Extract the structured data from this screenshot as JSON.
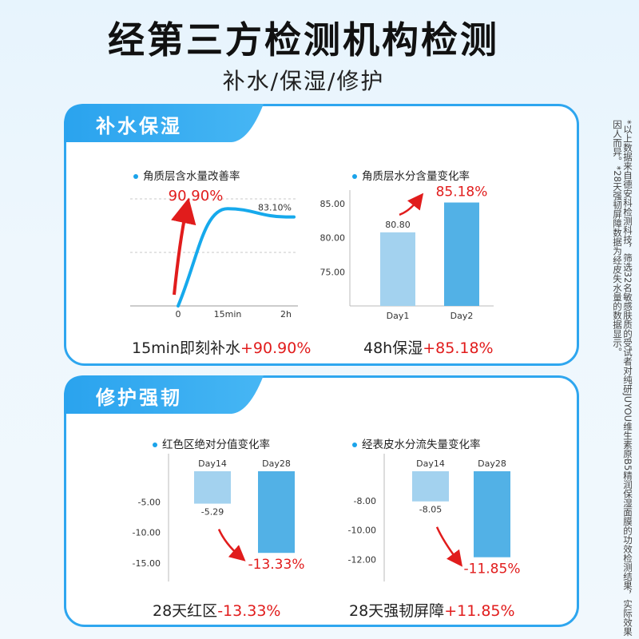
{
  "header": {
    "title": "经第三方检测机构检测",
    "subtitle": "补水/保湿/修护"
  },
  "side_note": "*以上数据来自德安科检测科技，筛选32名敏感肤质的受试者对纯研JUYOU维生素原B5精润保湿面膜的功效检测结果，实际效果因人而异。*28天强韧屏障数据为经皮失水量的数据显示。",
  "colors": {
    "accent": "#2ea6ef",
    "bar_light": "#a3d2ef",
    "bar_dark": "#52b1e6",
    "highlight": "#e11c1c"
  },
  "sections": {
    "hydration": {
      "tab_label": "补水保湿",
      "charts": [
        {
          "title": "角质层含水量改善率",
          "summary_text": "15min即刻补水",
          "summary_value": "+90.90%"
        },
        {
          "title": "角质层水分含量变化率",
          "summary_text": "48h保湿",
          "summary_value": "+85.18%"
        }
      ]
    },
    "repair": {
      "tab_label": "修护强韧",
      "charts": [
        {
          "title": "红色区绝对分值变化率",
          "summary_text": "28天红区",
          "summary_value": "-13.33%"
        },
        {
          "title": "经表皮水分流失量变化率",
          "summary_text": "28天强韧屏障",
          "summary_value": "+11.85%"
        }
      ]
    }
  },
  "chart_data": [
    {
      "type": "line",
      "title": "角质层含水量改善率",
      "x": [
        "0",
        "15min",
        "2h"
      ],
      "series": [
        {
          "values": [
            0,
            90.9,
            83.1
          ]
        }
      ],
      "data_labels": [
        "90.90%",
        "83.10%"
      ],
      "grid": true
    },
    {
      "type": "bar",
      "title": "角质层水分含量变化率",
      "categories": [
        "Day1",
        "Day2"
      ],
      "values": [
        80.8,
        85.18
      ],
      "data_labels": [
        "80.80",
        "85.18%"
      ],
      "yticks": [
        "85.00",
        "80.00",
        "75.00"
      ],
      "ylim": [
        70,
        87
      ]
    },
    {
      "type": "bar",
      "title": "红色区绝对分值变化率",
      "categories": [
        "Day14",
        "Day28"
      ],
      "values": [
        -5.29,
        -13.33
      ],
      "data_labels": [
        "-5.29",
        "-13.33%"
      ],
      "yticks": [
        "-5.00",
        "-10.00",
        "-15.00"
      ],
      "ylim": [
        -18,
        0
      ]
    },
    {
      "type": "bar",
      "title": "经表皮水分流失量变化率",
      "categories": [
        "Day14",
        "Day28"
      ],
      "values": [
        -8.05,
        -11.85
      ],
      "data_labels": [
        "-8.05",
        "-11.85%"
      ],
      "yticks": [
        "-8.00",
        "-10.00",
        "-12.00"
      ],
      "ylim": [
        -13.5,
        -6
      ]
    }
  ]
}
